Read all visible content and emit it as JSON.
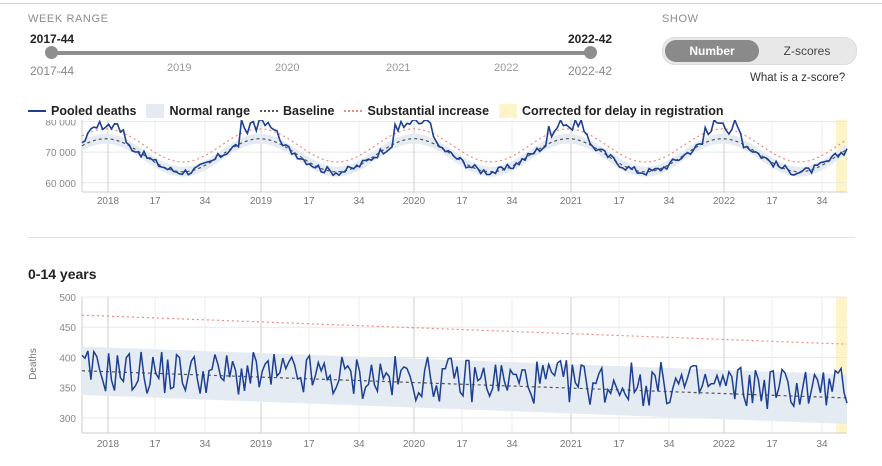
{
  "controls": {
    "week_range_label": "WEEK RANGE",
    "range_start": "2017-44",
    "range_end": "2022-42",
    "range_start_sub": "2017-44",
    "range_end_sub": "2022-42",
    "slider_years": [
      "2019",
      "2020",
      "2021",
      "2022"
    ],
    "show_label": "SHOW",
    "toggle_number": "Number",
    "toggle_zscores": "Z-scores",
    "zscore_link": "What is a z-score?"
  },
  "legend": {
    "pooled": "Pooled deaths",
    "normal": "Normal range",
    "baseline": "Baseline",
    "substantial": "Substantial increase",
    "corrected": "Corrected for delay in registration"
  },
  "colors": {
    "pooled": "#1c3f94",
    "normal_range": "#e5ebf2",
    "baseline": "#555555",
    "substantial": "#ef8a80",
    "corrected": "#fdf5c9"
  },
  "chart_data": [
    {
      "type": "line",
      "title": "",
      "series_names": [
        "Pooled deaths",
        "Normal range",
        "Baseline",
        "Substantial increase"
      ],
      "x_tick_labels": [
        "2018",
        "17",
        "34",
        "2019",
        "17",
        "34",
        "2020",
        "17",
        "34",
        "2021",
        "17",
        "34",
        "2022",
        "17",
        "34"
      ],
      "y_tick_labels": [
        "60 000",
        "70 000",
        "80 000"
      ],
      "ylim": [
        57000,
        80500
      ],
      "baseline_mean": 69000,
      "baseline_amplitude": 5400,
      "normal_band_half_width": 1600,
      "substantial_offset": 3200,
      "pooled_range": [
        61500,
        80500
      ],
      "corrected_weeks": "2022-39 to 2022-42",
      "grid": true
    },
    {
      "type": "line",
      "title": "0-14 years",
      "ylabel": "Deaths",
      "series_names": [
        "Pooled deaths",
        "Normal range",
        "Baseline",
        "Substantial increase"
      ],
      "x_tick_labels": [
        "2018",
        "17",
        "34",
        "2019",
        "17",
        "34",
        "2020",
        "17",
        "34",
        "2021",
        "17",
        "34",
        "2022",
        "17",
        "34"
      ],
      "y_tick_labels": [
        "300",
        "350",
        "400",
        "450",
        "500"
      ],
      "ylim": [
        275,
        500
      ],
      "baseline": {
        "start": 378,
        "end": 333
      },
      "normal_range": {
        "start": [
          338,
          418
        ],
        "end": [
          290,
          372
        ]
      },
      "substantial_increase": {
        "start": 470,
        "end": 422
      },
      "pooled_mean": 358,
      "pooled_range": [
        290,
        428
      ],
      "corrected_weeks": "2022-39 to 2022-42",
      "grid": true
    }
  ]
}
